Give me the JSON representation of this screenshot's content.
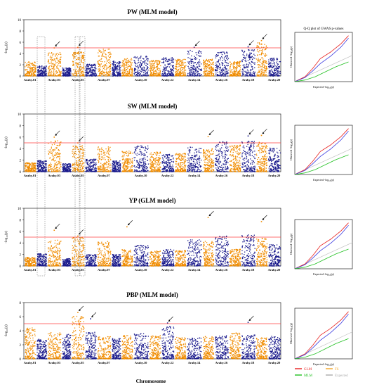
{
  "figure": {
    "x_axis_label": "Chromosome",
    "qq_title": "Q-Q plot of GWAS p-values",
    "qq_xlabel": "Expected -log₁₀(p)",
    "qq_ylabel": "Observed -log₁₀(p)",
    "qq_legend": [
      {
        "label": "GLM",
        "color": "#e8201e"
      },
      {
        "label": "FS",
        "color": "#f5a623"
      },
      {
        "label": "MLM",
        "color": "#20c020"
      },
      {
        "label": "Expected",
        "color": "#aaaaaa"
      }
    ]
  },
  "colors": {
    "chrom_odd": "#1a1a8c",
    "chrom_even": "#f08c00",
    "threshold": "#ff4040"
  },
  "chart_data": [
    {
      "type": "scatter",
      "title": "PW (MLM model)",
      "ylabel": "-log₁₀(p)",
      "ylim": [
        0,
        10
      ],
      "yticks": [
        0,
        2,
        4,
        6,
        8,
        10
      ],
      "threshold": 5,
      "chromosomes": [
        "Araby.01",
        "Araby.02",
        "Araby.03",
        "Araby.04",
        "Araby.05",
        "Araby.06",
        "Araby.07",
        "Araby.08",
        "Araby.09",
        "Araby.10",
        "Araby.11",
        "Araby.12",
        "Araby.13",
        "Araby.14",
        "Araby.15",
        "Araby.16",
        "Araby.17",
        "Araby.18",
        "Araby.19",
        "Araby.20"
      ],
      "tick_labels": [
        "Araby.01",
        "Araby.03",
        "Araby.05",
        "Araby.07",
        "Araby.10",
        "Araby.12",
        "Araby.14",
        "Araby.16",
        "Araby.18",
        "Araby.20"
      ],
      "chrom_peak": [
        2.6,
        1.8,
        4.2,
        1.5,
        4.3,
        2.1,
        4.8,
        2.7,
        3.1,
        3.6,
        2.8,
        3.3,
        3.0,
        4.6,
        3.0,
        4.3,
        2.6,
        4.7,
        5.9,
        3.2
      ],
      "top_hits": [
        {
          "chrom": 3,
          "y": 5.0
        },
        {
          "chrom": 5,
          "y": 5.1
        },
        {
          "chrom": 14,
          "y": 5.1
        },
        {
          "chrom": 18,
          "y": 5.2
        },
        {
          "chrom": 19,
          "y": 6.3
        }
      ]
    },
    {
      "type": "scatter",
      "title": "SW (MLM model)",
      "ylabel": "-log₁₀(p)",
      "ylim": [
        0,
        10
      ],
      "yticks": [
        0,
        2,
        4,
        6,
        8,
        10
      ],
      "threshold": 5,
      "chromosomes": [
        "Araby.01",
        "Araby.02",
        "Araby.03",
        "Araby.04",
        "Araby.05",
        "Araby.06",
        "Araby.07",
        "Araby.08",
        "Araby.09",
        "Araby.10",
        "Araby.11",
        "Araby.12",
        "Araby.13",
        "Araby.14",
        "Araby.15",
        "Araby.16",
        "Araby.17",
        "Araby.18",
        "Araby.19",
        "Araby.20"
      ],
      "tick_labels": [
        "Araby.01",
        "Araby.03",
        "Araby.05",
        "Araby.07",
        "Araby.10",
        "Araby.12",
        "Araby.14",
        "Araby.16",
        "Araby.18",
        "Araby.20"
      ],
      "chrom_peak": [
        1.6,
        2.0,
        5.4,
        1.4,
        4.5,
        2.2,
        4.3,
        1.9,
        3.6,
        4.5,
        3.4,
        3.1,
        3.2,
        4.3,
        4.0,
        5.2,
        4.6,
        5.3,
        5.1,
        4.1
      ],
      "top_hits": [
        {
          "chrom": 3,
          "y": 6.0
        },
        {
          "chrom": 5,
          "y": 5.0
        },
        {
          "chrom": 15,
          "y": 6.1
        },
        {
          "chrom": 18,
          "y": 6.2
        },
        {
          "chrom": 19,
          "y": 6.3
        }
      ]
    },
    {
      "type": "scatter",
      "title": "YP (GLM model)",
      "ylabel": "-log₁₀(p)",
      "ylim": [
        0,
        10
      ],
      "yticks": [
        0,
        2,
        4,
        6,
        8,
        10
      ],
      "threshold": 5,
      "chromosomes": [
        "Araby.01",
        "Araby.02",
        "Araby.03",
        "Araby.04",
        "Araby.05",
        "Araby.06",
        "Araby.07",
        "Araby.08",
        "Araby.09",
        "Araby.10",
        "Araby.11",
        "Araby.12",
        "Araby.13",
        "Araby.14",
        "Araby.15",
        "Araby.16",
        "Araby.17",
        "Araby.18",
        "Araby.19",
        "Araby.20"
      ],
      "tick_labels": [
        "Araby.01",
        "Araby.03",
        "Araby.05",
        "Araby.07",
        "Araby.10",
        "Araby.12",
        "Araby.14",
        "Araby.16",
        "Araby.18",
        "Araby.20"
      ],
      "chrom_peak": [
        1.5,
        2.2,
        4.5,
        1.3,
        5.0,
        2.0,
        4.3,
        2.0,
        2.9,
        3.6,
        2.6,
        2.9,
        2.7,
        4.6,
        4.3,
        5.2,
        2.9,
        5.4,
        4.9,
        3.7
      ],
      "top_hits": [
        {
          "chrom": 3,
          "y": 6.2
        },
        {
          "chrom": 5,
          "y": 5.2
        },
        {
          "chrom": 9,
          "y": 6.8
        },
        {
          "chrom": 15,
          "y": 8.4
        },
        {
          "chrom": 19,
          "y": 7.7
        }
      ]
    },
    {
      "type": "scatter",
      "title": "PBP  (MLM model)",
      "ylabel": "-log₁₀(p)",
      "ylim": [
        0,
        8
      ],
      "yticks": [
        0,
        2,
        4,
        6,
        8
      ],
      "threshold": 5,
      "chromosomes": [
        "Araby.01",
        "Araby.02",
        "Araby.03",
        "Araby.04",
        "Araby.05",
        "Araby.06",
        "Araby.07",
        "Araby.08",
        "Araby.09",
        "Araby.10",
        "Araby.11",
        "Araby.12",
        "Araby.13",
        "Araby.14",
        "Araby.15",
        "Araby.16",
        "Araby.17",
        "Araby.18",
        "Araby.19",
        "Araby.20"
      ],
      "tick_labels": [
        "Araby.01",
        "Araby.03",
        "Araby.05",
        "Araby.07",
        "Araby.10",
        "Araby.12",
        "Araby.14",
        "Araby.16",
        "Araby.18",
        "Araby.20"
      ],
      "chrom_peak": [
        4.4,
        2.8,
        3.9,
        3.5,
        6.1,
        3.8,
        3.2,
        2.9,
        3.4,
        3.6,
        3.3,
        4.6,
        3.1,
        3.0,
        3.2,
        3.3,
        3.7,
        3.4,
        3.0,
        3.2
      ],
      "top_hits": [
        {
          "chrom": 5,
          "y": 6.6
        },
        {
          "chrom": 6,
          "y": 5.7
        },
        {
          "chrom": 12,
          "y": 5.1
        },
        {
          "chrom": 18,
          "y": 5.2
        }
      ]
    }
  ]
}
